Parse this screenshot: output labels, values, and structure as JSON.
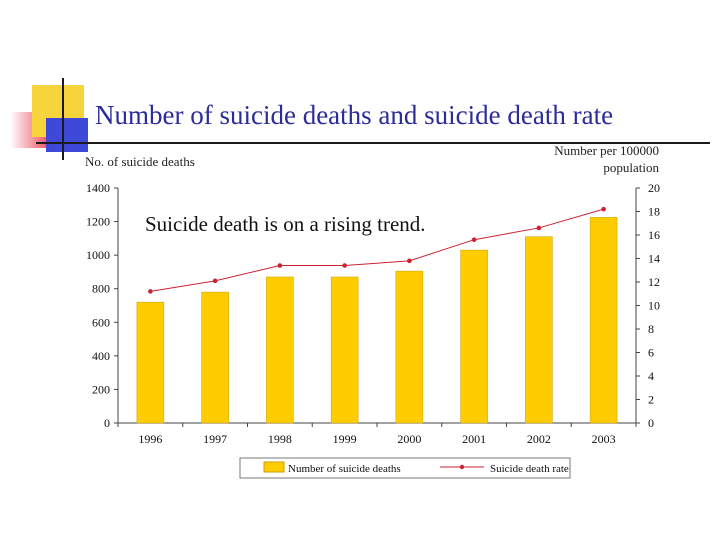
{
  "slide": {
    "title": "Number of suicide deaths and suicide death rate"
  },
  "colors": {
    "bar": "#ffcc00",
    "bar_stroke": "#c9a000",
    "line": "#cc2233",
    "title": "#2b2b9a"
  },
  "chart_data": {
    "type": "bar",
    "categories": [
      "1996",
      "1997",
      "1998",
      "1999",
      "2000",
      "2001",
      "2002",
      "2003"
    ],
    "series": [
      {
        "name": "Number of suicide deaths",
        "type": "bar",
        "axis": "left",
        "values": [
          720,
          780,
          870,
          870,
          905,
          1030,
          1110,
          1225
        ]
      },
      {
        "name": "Suicide death rate",
        "type": "line",
        "axis": "right",
        "values": [
          11.2,
          12.1,
          13.4,
          13.4,
          13.8,
          15.6,
          16.6,
          18.2
        ]
      }
    ],
    "ylabel_left": "No. of suicide deaths",
    "ylabel_right": "Number per 100000 population",
    "ylim_left": [
      0,
      1400
    ],
    "ylim_right": [
      0,
      20
    ],
    "yticks_left": [
      "0",
      "200",
      "400",
      "600",
      "800",
      "1000",
      "1200",
      "1400"
    ],
    "yticks_right": [
      "0",
      "2",
      "4",
      "6",
      "8",
      "10",
      "12",
      "14",
      "16",
      "18",
      "20"
    ],
    "annotation": "Suicide death is on a rising trend.",
    "legend_position": "bottom",
    "grid": false
  }
}
